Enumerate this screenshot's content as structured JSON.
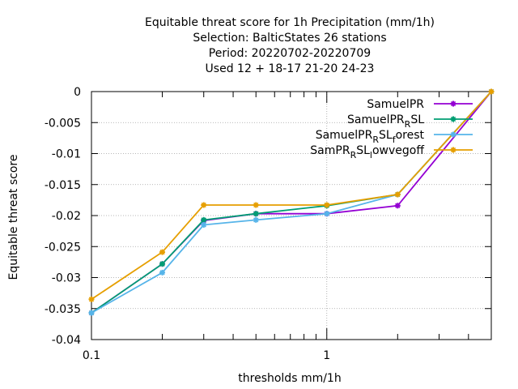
{
  "chart_data": {
    "type": "line",
    "title_lines": [
      "Equitable threat score  for 1h Precipitation (mm/1h)",
      "Selection: BalticStates     26 stations",
      "Period: 20220702-20220709",
      "Used  12 + 18-17 21-20 24-23"
    ],
    "xlabel": "thresholds mm/1h",
    "ylabel": "Equitable threat score",
    "xscale": "log",
    "xlim": [
      0.1,
      5
    ],
    "ylim": [
      -0.04,
      0
    ],
    "x_tick_labels": [
      "0.1",
      "1"
    ],
    "y_ticks": [
      0,
      -0.005,
      -0.01,
      -0.015,
      -0.02,
      -0.025,
      -0.03,
      -0.035,
      -0.04
    ],
    "y_tick_labels": [
      "0",
      "-0.005",
      "-0.01",
      "-0.015",
      "-0.02",
      "-0.025",
      "-0.03",
      "-0.035",
      "-0.04"
    ],
    "grid": true,
    "legend_position": "top-right",
    "x": [
      0.1,
      0.2,
      0.3,
      0.5,
      1,
      2,
      5
    ],
    "series": [
      {
        "name": "SamuelPR",
        "name_parts": [
          [
            "SamuelPR",
            "n"
          ]
        ],
        "color": "#9400d3",
        "values": [
          -0.0357,
          -0.0278,
          -0.0208,
          -0.0197,
          -0.0197,
          -0.0184,
          0
        ]
      },
      {
        "name": "SamuelPR_RSL",
        "name_parts": [
          [
            "SamuelPR",
            "n"
          ],
          [
            "R",
            "sub"
          ],
          [
            "SL",
            "n"
          ]
        ],
        "color": "#009e73",
        "values": [
          -0.0357,
          -0.0278,
          -0.0207,
          -0.0197,
          -0.0184,
          -0.0166,
          0
        ]
      },
      {
        "name": "SamuelPR_RSL_forest",
        "name_parts": [
          [
            "SamuelPR",
            "n"
          ],
          [
            "R",
            "sub"
          ],
          [
            "SL",
            "n"
          ],
          [
            "f",
            "sub"
          ],
          [
            "orest",
            "n"
          ]
        ],
        "color": "#56b4e9",
        "values": [
          -0.0357,
          -0.0292,
          -0.0215,
          -0.0207,
          -0.0197,
          -0.0166,
          0
        ]
      },
      {
        "name": "SamPR_RSL_lowvegoff",
        "name_parts": [
          [
            "SamPR",
            "n"
          ],
          [
            "R",
            "sub"
          ],
          [
            "SL",
            "n"
          ],
          [
            "l",
            "sub"
          ],
          [
            "owvegoff",
            "n"
          ]
        ],
        "color": "#e69f00",
        "values": [
          -0.0335,
          -0.0259,
          -0.0183,
          -0.0183,
          -0.0183,
          -0.0166,
          0
        ]
      }
    ]
  }
}
